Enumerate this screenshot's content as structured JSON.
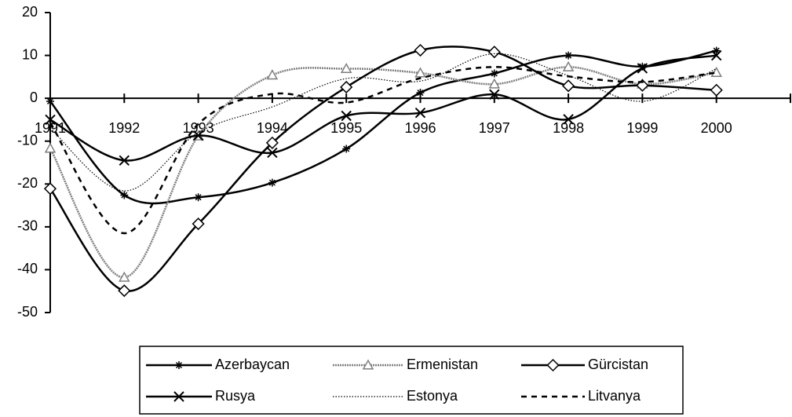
{
  "chart_data": {
    "type": "line",
    "categories": [
      "1991",
      "1992",
      "1993",
      "1994",
      "1995",
      "1996",
      "1997",
      "1998",
      "1999",
      "2000"
    ],
    "ylim": [
      -50,
      20
    ],
    "yticks": [
      -50,
      -40,
      -30,
      -20,
      -10,
      0,
      10,
      20
    ],
    "smooth": true,
    "series": [
      {
        "name": "Azerbaycan",
        "color": "#000000",
        "width": 2.5,
        "dash": "none",
        "marker": "asterisk",
        "values": [
          -0.7,
          -22.6,
          -23.1,
          -19.7,
          -11.8,
          1.3,
          5.8,
          10.0,
          7.4,
          11.1
        ]
      },
      {
        "name": "Ermenistan",
        "color": "#7f7f7f",
        "width": 2.5,
        "dash": "2 1",
        "marker": "triangle",
        "values": [
          -11.7,
          -41.8,
          -8.8,
          5.4,
          6.9,
          5.9,
          3.3,
          7.3,
          3.3,
          6.0
        ]
      },
      {
        "name": "Gürcistan",
        "color": "#000000",
        "width": 2.5,
        "dash": "none",
        "marker": "diamond",
        "values": [
          -21.1,
          -44.9,
          -29.3,
          -10.4,
          2.6,
          11.2,
          10.8,
          2.9,
          3.0,
          1.9
        ]
      },
      {
        "name": "Rusya",
        "color": "#000000",
        "width": 2.5,
        "dash": "none",
        "marker": "x",
        "values": [
          -5.0,
          -14.5,
          -8.7,
          -12.7,
          -4.1,
          -3.4,
          0.9,
          -4.9,
          7.0,
          10.0
        ]
      },
      {
        "name": "Estonya",
        "color": "#000000",
        "width": 1.2,
        "dash": "1.5 2",
        "marker": "none",
        "values": [
          -7.0,
          -21.6,
          -8.0,
          -2.0,
          4.6,
          4.0,
          10.4,
          5.3,
          -0.7,
          6.9
        ]
      },
      {
        "name": "Litvanya",
        "color": "#000000",
        "width": 2.5,
        "dash": "7 6",
        "marker": "none",
        "values": [
          -5.7,
          -31.5,
          -6.0,
          1.0,
          -1.0,
          4.7,
          7.3,
          5.1,
          3.8,
          6.0
        ]
      }
    ]
  }
}
